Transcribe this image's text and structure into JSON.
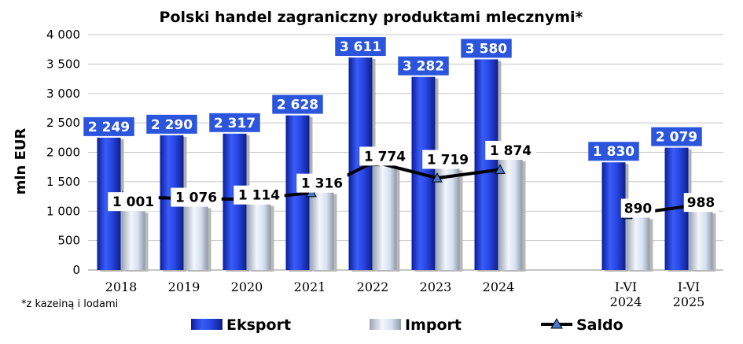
{
  "chart_data": {
    "type": "bar",
    "title": "Polski handel zagraniczny produktami mlecznymi*",
    "ylabel": "mln  EUR",
    "xlabel": "",
    "ylim": [
      0,
      4000
    ],
    "yticks": [
      0,
      500,
      1000,
      1500,
      2000,
      2500,
      3000,
      3500,
      4000
    ],
    "ytick_labels": [
      "0",
      "500",
      "1 000",
      "1 500",
      "2 000",
      "2 500",
      "3 000",
      "3 500",
      "4 000"
    ],
    "groups": [
      {
        "categories": [
          "2018",
          "2019",
          "2020",
          "2021",
          "2022",
          "2023",
          "2024"
        ]
      },
      {
        "categories": [
          "I-VI 2024",
          "I-VI 2025"
        ]
      }
    ],
    "categories": [
      {
        "line1": "2018",
        "line2": ""
      },
      {
        "line1": "2019",
        "line2": ""
      },
      {
        "line1": "2020",
        "line2": ""
      },
      {
        "line1": "2021",
        "line2": ""
      },
      {
        "line1": "2022",
        "line2": ""
      },
      {
        "line1": "2023",
        "line2": ""
      },
      {
        "line1": "2024",
        "line2": ""
      },
      {
        "line1": "I-VI",
        "line2": "2024"
      },
      {
        "line1": "I-VI",
        "line2": "2025"
      }
    ],
    "series": [
      {
        "name": "Eksport",
        "type": "bar",
        "color": "#1f3fe0",
        "values": [
          2249,
          2290,
          2317,
          2628,
          3611,
          3282,
          3580,
          1830,
          2079
        ],
        "labels": [
          "2 249",
          "2 290",
          "2 317",
          "2 628",
          "3 611",
          "3 282",
          "3 580",
          "1 830",
          "2 079"
        ]
      },
      {
        "name": "Import",
        "type": "bar",
        "color": "#d9e4f5",
        "values": [
          1001,
          1076,
          1114,
          1316,
          1774,
          1719,
          1874,
          890,
          988
        ],
        "labels": [
          "1 001",
          "1 076",
          "1 114",
          "1 316",
          "1 774",
          "1 719",
          "1 874",
          "890",
          "988"
        ]
      },
      {
        "name": "Saldo",
        "type": "line",
        "color": "#000000",
        "marker_color": "#4a78c8",
        "values": [
          1248,
          1214,
          1203,
          1312,
          1837,
          1563,
          1706,
          940,
          1091
        ]
      }
    ],
    "legend": {
      "placement": "bottom",
      "items": [
        "Eksport",
        "Import",
        "Saldo"
      ]
    },
    "footnote": "*z kazeiną i lodami",
    "grid": true
  }
}
